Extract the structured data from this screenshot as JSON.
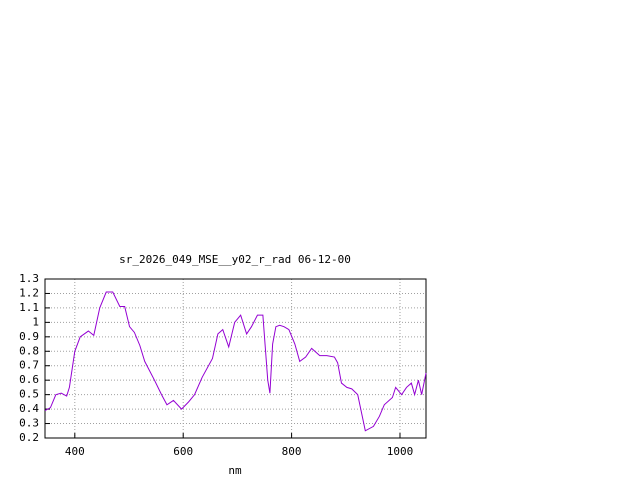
{
  "chart_data": {
    "type": "line",
    "title": "sr_2026_049_MSE__y02_r_rad 06-12-00",
    "x_label": "nm",
    "x": [
      345,
      355,
      365,
      375,
      385,
      390,
      400,
      410,
      425,
      435,
      446,
      458,
      470,
      483,
      492,
      501,
      510,
      520,
      529,
      547,
      560,
      570,
      582,
      597,
      610,
      621,
      635,
      654,
      664,
      673,
      684,
      695,
      706,
      717,
      726,
      737,
      747,
      753,
      756,
      760,
      765,
      771,
      778,
      786,
      795,
      806,
      815,
      826,
      837,
      846,
      852,
      865,
      879,
      885,
      892,
      902,
      911,
      922,
      936,
      951,
      962,
      971,
      986,
      992,
      1003,
      1012,
      1021,
      1027,
      1034,
      1040,
      1048
    ],
    "series": [
      {
        "color": "#9400d3",
        "values": [
          0.39,
          0.41,
          0.5,
          0.51,
          0.49,
          0.55,
          0.8,
          0.9,
          0.94,
          0.91,
          1.1,
          1.21,
          1.21,
          1.11,
          1.11,
          0.97,
          0.93,
          0.84,
          0.73,
          0.6,
          0.5,
          0.43,
          0.46,
          0.4,
          0.45,
          0.5,
          0.62,
          0.75,
          0.92,
          0.95,
          0.83,
          1.0,
          1.05,
          0.92,
          0.97,
          1.05,
          1.05,
          0.75,
          0.6,
          0.51,
          0.85,
          0.97,
          0.98,
          0.97,
          0.95,
          0.85,
          0.73,
          0.76,
          0.82,
          0.79,
          0.77,
          0.77,
          0.76,
          0.72,
          0.58,
          0.55,
          0.54,
          0.5,
          0.25,
          0.28,
          0.35,
          0.43,
          0.48,
          0.55,
          0.5,
          0.55,
          0.58,
          0.5,
          0.6,
          0.5,
          0.65
        ]
      }
    ],
    "xlim": [
      345,
      1048
    ],
    "ylim": [
      0.2,
      1.3
    ],
    "xticks": [
      400,
      600,
      800,
      1000
    ],
    "yticks": [
      0.2,
      0.3,
      0.4,
      0.5,
      0.6,
      0.7,
      0.8,
      0.9,
      1,
      1.1,
      1.2,
      1.3
    ],
    "grid": true
  }
}
